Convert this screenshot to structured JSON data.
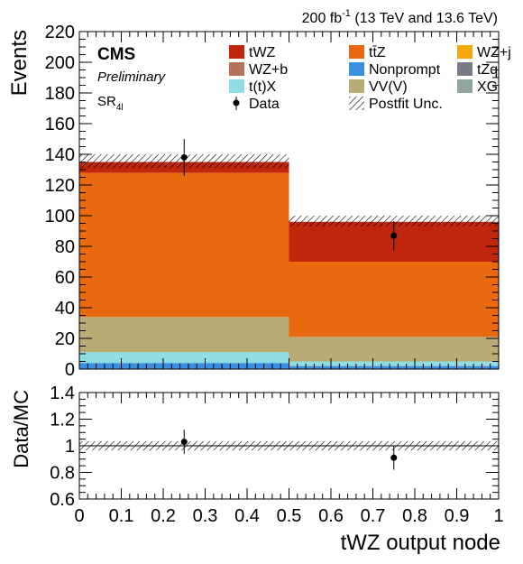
{
  "header": {
    "lumi_value": "200 fb",
    "lumi_exp": "-1",
    "lumi_energy": " (13 TeV and 13.6 TeV)"
  },
  "labels": {
    "cms": "CMS",
    "preliminary": "Preliminary",
    "region_main": "SR",
    "region_sub": "4l"
  },
  "colors": {
    "tWZ": "#c0260c",
    "ttZ": "#e8690f",
    "WZj": "#f6a90a",
    "WZb": "#b5725a",
    "Nonprompt": "#3b8fe0",
    "tZq": "#777a85",
    "ttX": "#8fdde3",
    "VVV": "#b9ab75",
    "XG": "#92a59c"
  },
  "legend": [
    {
      "key": "tWZ",
      "label": "tWZ",
      "style": "box"
    },
    {
      "key": "ttZ",
      "label": "tt̄Z",
      "style": "box"
    },
    {
      "key": "WZj",
      "label": "WZ+j",
      "style": "box"
    },
    {
      "key": "WZb",
      "label": "WZ+b",
      "style": "box"
    },
    {
      "key": "Nonprompt",
      "label": "Nonprompt",
      "style": "box"
    },
    {
      "key": "tZq",
      "label": "tZq",
      "style": "box"
    },
    {
      "key": "ttX",
      "label": "t(t)X",
      "style": "box"
    },
    {
      "key": "VVV",
      "label": "VV(V)",
      "style": "box"
    },
    {
      "key": "XG",
      "label": "XG",
      "style": "box"
    },
    {
      "key": "data",
      "label": "Data",
      "style": "marker"
    },
    {
      "key": "unc",
      "label": "Postfit Unc.",
      "style": "hatch"
    }
  ],
  "chart_data": [
    {
      "type": "bar",
      "subtype": "stacked-histogram",
      "ylabel": "Events",
      "ylim": [
        0,
        220
      ],
      "yticks": [
        0,
        20,
        40,
        60,
        80,
        100,
        120,
        140,
        160,
        180,
        200,
        220
      ],
      "xlim": [
        0,
        1
      ],
      "bin_edges": [
        0,
        0.5,
        1
      ],
      "series": [
        {
          "name": "Nonprompt",
          "values": [
            4,
            2
          ]
        },
        {
          "name": "t(t)X",
          "values": [
            7,
            3
          ]
        },
        {
          "name": "VV(V)",
          "values": [
            23,
            16
          ]
        },
        {
          "name": "tt̄Z",
          "values": [
            94,
            49
          ]
        },
        {
          "name": "tWZ",
          "values": [
            7,
            26
          ]
        }
      ],
      "totals": [
        135,
        96
      ],
      "uncertainty_band": [
        [
          131,
          140
        ],
        [
          93,
          100
        ]
      ],
      "data": {
        "x": [
          0.25,
          0.75
        ],
        "y": [
          138,
          87
        ],
        "yerr": [
          12,
          9.5
        ]
      }
    },
    {
      "type": "scatter",
      "subtype": "ratio",
      "xlabel": "tWZ output node",
      "ylabel": "Data/MC",
      "ylim": [
        0.6,
        1.4
      ],
      "yticks": [
        0.6,
        0.8,
        1,
        1.2,
        1.4
      ],
      "ytick_labels": [
        "0.6",
        "0.8",
        "1",
        "1.2",
        "1.4"
      ],
      "xlim": [
        0,
        1
      ],
      "xticks": [
        0,
        0.1,
        0.2,
        0.3,
        0.4,
        0.5,
        0.6,
        0.7,
        0.8,
        0.9,
        1
      ],
      "xtick_labels": [
        "0",
        "0.1",
        "0.2",
        "0.3",
        "0.4",
        "0.5",
        "0.6",
        "0.7",
        "0.8",
        "0.9",
        "1"
      ],
      "reference_line": 1,
      "uncertainty_band": [
        0.965,
        1.035
      ],
      "x": [
        0.25,
        0.75
      ],
      "y": [
        1.03,
        0.91
      ],
      "yerr": [
        0.09,
        0.09
      ]
    }
  ]
}
